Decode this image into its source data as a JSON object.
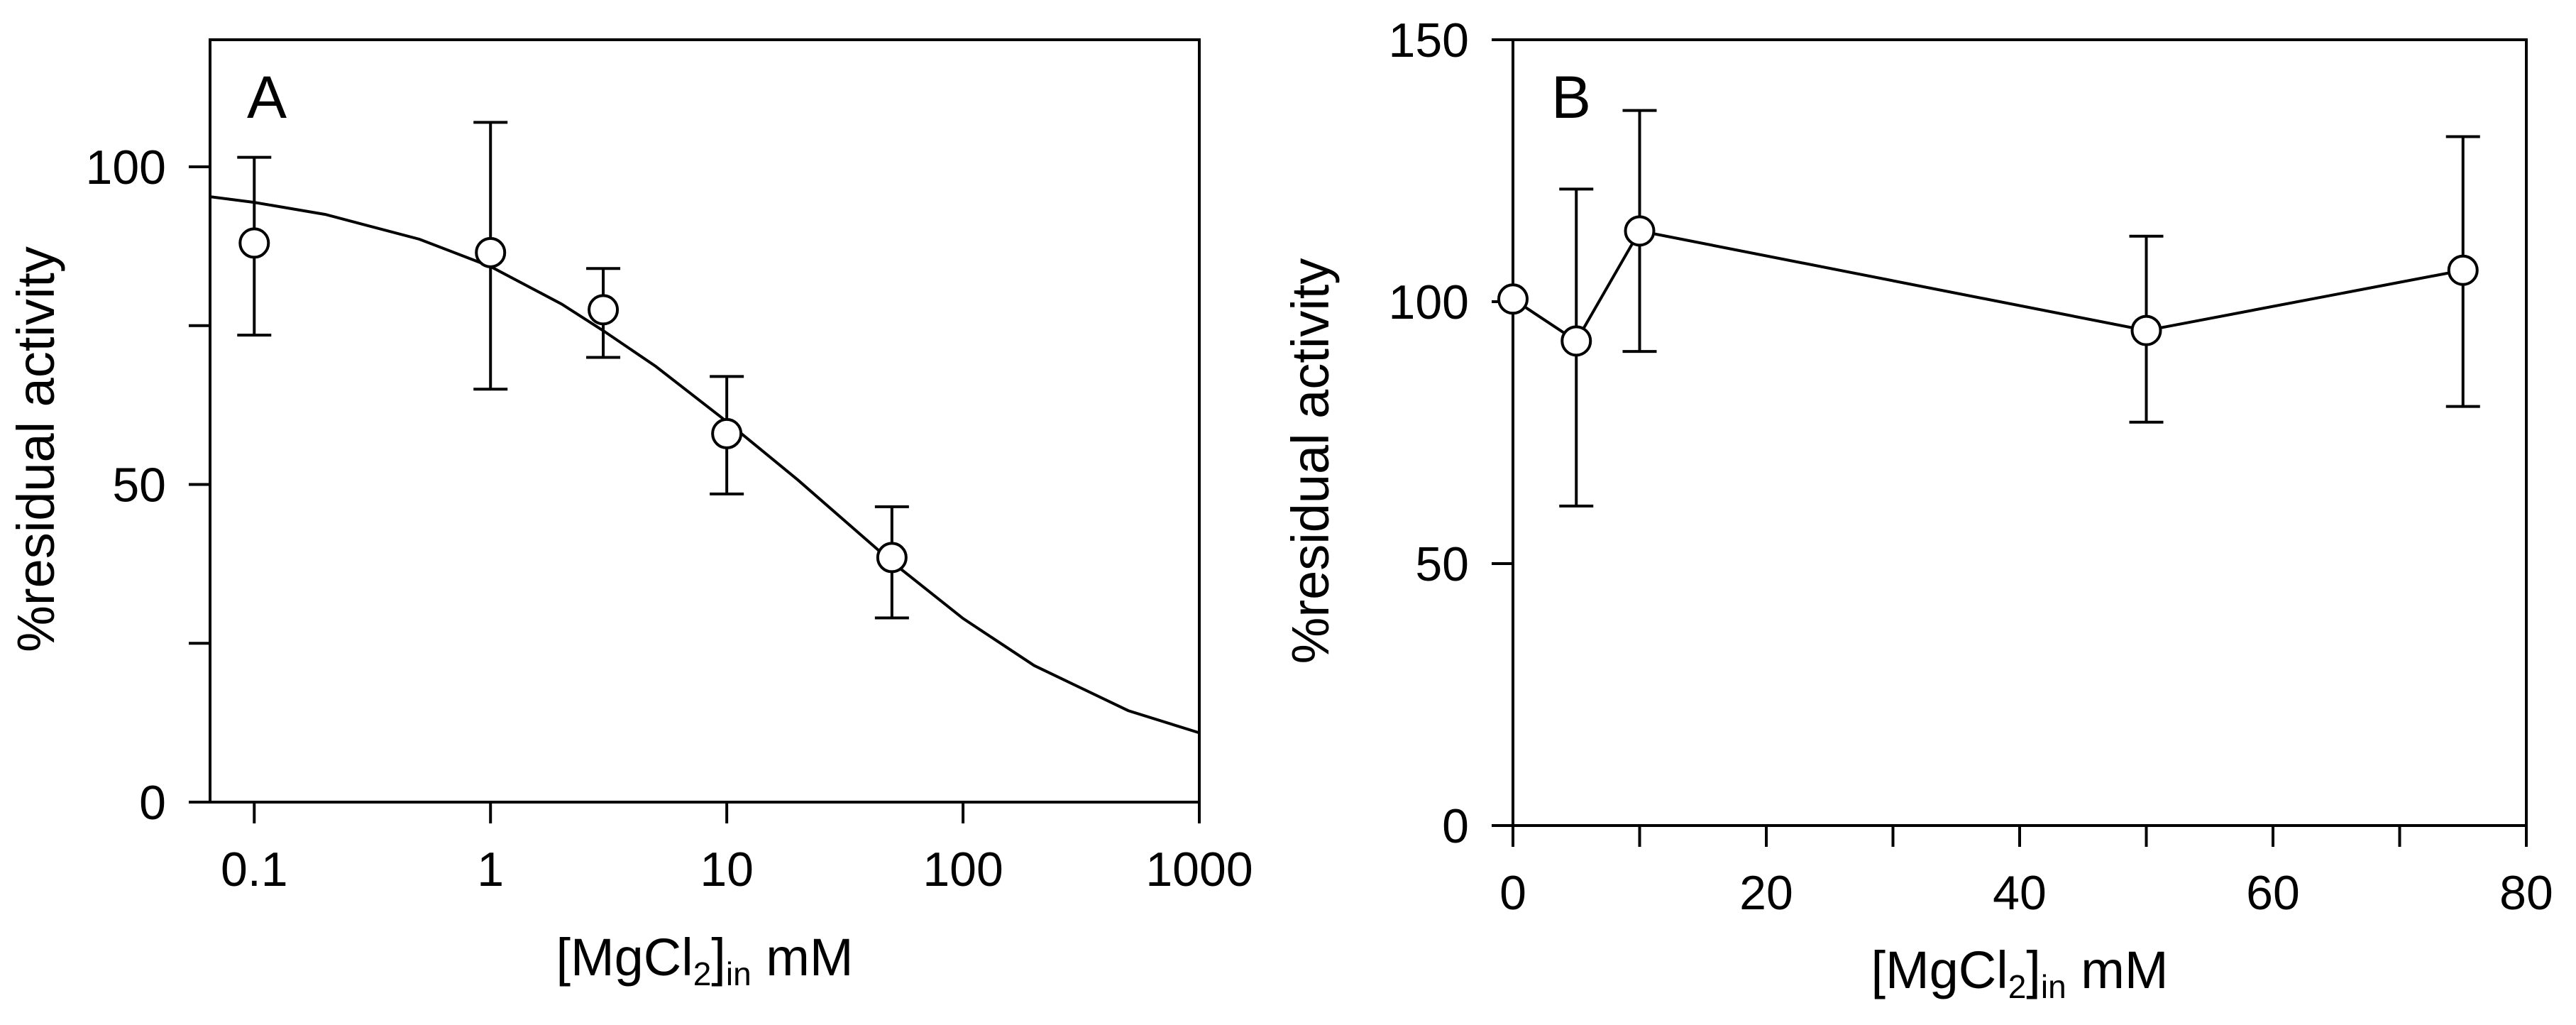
{
  "chart_data": [
    {
      "panel": "A",
      "type": "scatter",
      "x_scale": "log",
      "xlabel_parts": [
        "[MgCl",
        "2",
        "]",
        "in",
        " mM"
      ],
      "ylabel": "%residual activity",
      "xlim": [
        0.065,
        1000
      ],
      "ylim": [
        0,
        120
      ],
      "x_ticks": [
        0.1,
        1,
        10,
        100,
        1000
      ],
      "x_tick_labels": [
        "0.1",
        "1",
        "10",
        "100",
        "1000"
      ],
      "y_ticks": [
        0,
        25,
        50,
        75,
        100
      ],
      "y_tick_labels": [
        "0",
        "",
        "50",
        "",
        "100"
      ],
      "series": [
        {
          "name": "data",
          "x": [
            0.1,
            1,
            3,
            10,
            50
          ],
          "y": [
            88,
            86.5,
            77.5,
            58,
            38.5
          ],
          "err_upper": [
            101.5,
            107,
            84,
            67,
            46.5
          ],
          "err_lower": [
            73.5,
            65,
            70,
            48.5,
            29
          ]
        }
      ],
      "fit": {
        "name": "fit curve",
        "x": [
          0.065,
          0.1,
          0.2,
          0.5,
          1,
          2,
          3,
          5,
          10,
          20,
          50,
          100,
          200,
          500,
          1000
        ],
        "y": [
          95.3,
          94.4,
          92.5,
          88.6,
          84.3,
          78.4,
          74.2,
          68.6,
          59.9,
          50.7,
          37.8,
          28.9,
          21.5,
          14.4,
          10.9
        ]
      }
    },
    {
      "panel": "B",
      "type": "line",
      "x_scale": "linear",
      "xlabel_parts": [
        "[MgCl",
        "2",
        "]",
        "in",
        " mM"
      ],
      "ylabel": "%residual activity",
      "xlim": [
        0,
        80
      ],
      "ylim": [
        0,
        150
      ],
      "x_ticks": [
        0,
        10,
        20,
        30,
        40,
        50,
        60,
        70,
        80
      ],
      "x_tick_labels": [
        "0",
        "",
        "20",
        "",
        "40",
        "",
        "60",
        "",
        "80"
      ],
      "y_ticks": [
        0,
        50,
        100,
        150
      ],
      "y_tick_labels": [
        "0",
        "50",
        "100",
        "150"
      ],
      "series": [
        {
          "name": "data",
          "x": [
            0,
            5,
            10,
            50,
            75
          ],
          "y": [
            100.5,
            92.5,
            113.5,
            94.5,
            106
          ],
          "err_upper": [
            100.5,
            121.5,
            136.5,
            112.5,
            131.5
          ],
          "err_lower": [
            100.5,
            61,
            90.5,
            77,
            80
          ]
        }
      ]
    }
  ]
}
